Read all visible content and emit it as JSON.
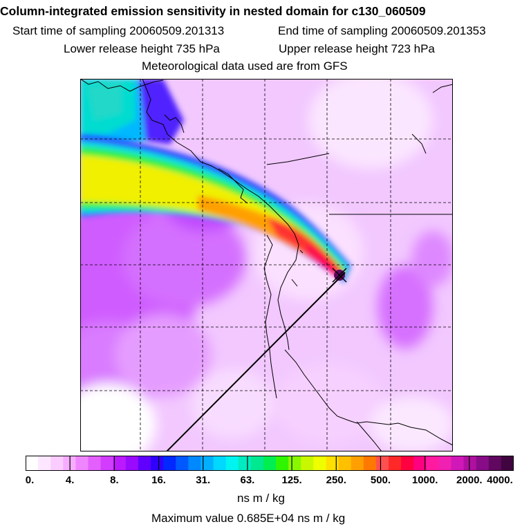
{
  "title": "Column-integrated emission sensitivity in nested domain for c130_060509",
  "sampling": {
    "start": "Start time of sampling 20060509.201313",
    "end": "End time of sampling 20060509.201353"
  },
  "release": {
    "lower": "Lower release height  735 hPa",
    "upper": "Upper release height  723 hPa"
  },
  "met_note": "Meteorological data used are from GFS",
  "colorbar": {
    "colors": [
      "#ffffff",
      "#fde6ff",
      "#fbccff",
      "#f7adff",
      "#ef86ff",
      "#e360ff",
      "#d23cff",
      "#bb1aff",
      "#9a0aff",
      "#6000ff",
      "#3000ff",
      "#0028ff",
      "#0058ff",
      "#0088ff",
      "#00b0ff",
      "#00d8ff",
      "#00f5f0",
      "#00ecc0",
      "#00e890",
      "#00ee50",
      "#30f500",
      "#88f800",
      "#c8f800",
      "#f0ff00",
      "#ffe000",
      "#ffc000",
      "#ffa000",
      "#ff7800",
      "#ff5050",
      "#ff2828",
      "#ff0040",
      "#ff0080",
      "#ff1aa0",
      "#f020b0",
      "#d018b8",
      "#b010a0",
      "#880c88",
      "#600860",
      "#400440"
    ],
    "ticks": [
      "0.",
      "4.",
      "8.",
      "16.",
      "31.",
      "63.",
      "125.",
      "250.",
      "500.",
      "1000.",
      "2000.",
      "4000."
    ],
    "units": "ns m / kg"
  },
  "max_value": "Maximum value  0.685E+04 ns m / kg"
}
